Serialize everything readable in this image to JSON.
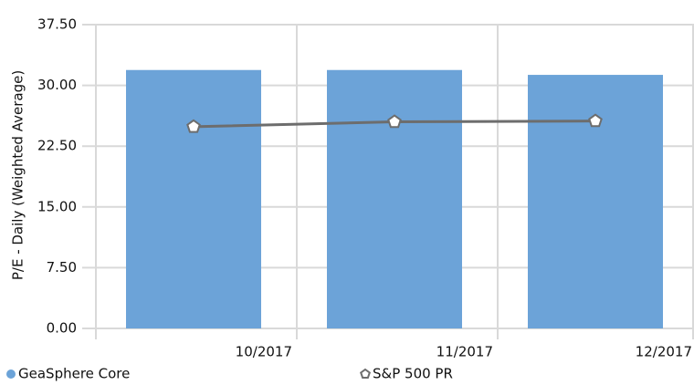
{
  "chart_data": {
    "type": "bar",
    "y_label": "P/E - Daily (Weighted Average)",
    "categories": [
      "10/2017",
      "11/2017",
      "12/2017"
    ],
    "series": [
      {
        "name": "GeaSphere Core",
        "type": "bar",
        "color": "#6ca3d8",
        "values": [
          31.9,
          31.9,
          31.3
        ]
      },
      {
        "name": "S&P 500 PR",
        "type": "line",
        "color": "#6d6d6d",
        "values": [
          24.9,
          25.5,
          25.6
        ]
      }
    ],
    "ylim": [
      0,
      37.5
    ],
    "yticks": [
      {
        "value": 0,
        "label": "0.00"
      },
      {
        "value": 7.5,
        "label": "7.50"
      },
      {
        "value": 15,
        "label": "15.00"
      },
      {
        "value": 22.5,
        "label": "22.50"
      },
      {
        "value": 30,
        "label": "30.00"
      },
      {
        "value": 37.5,
        "label": "37.50"
      }
    ],
    "grid": true
  }
}
